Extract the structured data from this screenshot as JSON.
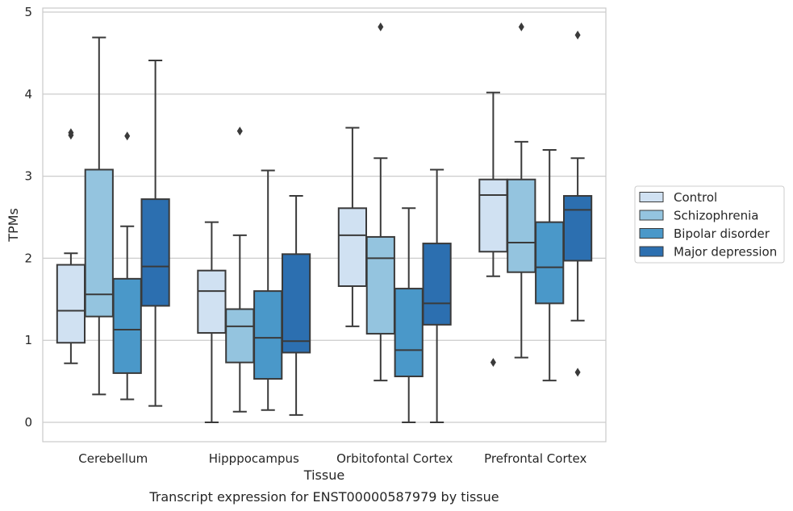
{
  "caption": "Transcript expression for ENST00000587979 by tissue",
  "chart_data": {
    "type": "box",
    "xlabel": "Tissue",
    "ylabel": "TPMs",
    "ylim": [
      -0.23,
      5.07
    ],
    "yticks": [
      0,
      1,
      2,
      3,
      4,
      5
    ],
    "grid": "horizontal",
    "legend_position": "right",
    "categories": [
      "Cerebellum",
      "Hipppocampus",
      "Orbitofontal Cortex",
      "Prefrontal Cortex"
    ],
    "series": [
      {
        "name": "Control",
        "color": "#d0e1f2",
        "boxes": [
          {
            "whislo": 0.72,
            "q1": 0.97,
            "med": 1.36,
            "q3": 1.92,
            "whishi": 2.06,
            "fliers": [
              3.5,
              3.53
            ]
          },
          {
            "whislo": 0.0,
            "q1": 1.09,
            "med": 1.6,
            "q3": 1.85,
            "whishi": 2.44,
            "fliers": []
          },
          {
            "whislo": 1.17,
            "q1": 1.66,
            "med": 2.28,
            "q3": 2.61,
            "whishi": 3.59,
            "fliers": []
          },
          {
            "whislo": 1.78,
            "q1": 2.08,
            "med": 2.77,
            "q3": 2.96,
            "whishi": 4.02,
            "fliers": [
              0.73
            ]
          }
        ]
      },
      {
        "name": "Schizophrenia",
        "color": "#94c4df",
        "boxes": [
          {
            "whislo": 0.34,
            "q1": 1.29,
            "med": 1.56,
            "q3": 3.08,
            "whishi": 4.69,
            "fliers": []
          },
          {
            "whislo": 0.13,
            "q1": 0.73,
            "med": 1.17,
            "q3": 1.38,
            "whishi": 2.28,
            "fliers": [
              3.55
            ]
          },
          {
            "whislo": 0.51,
            "q1": 1.08,
            "med": 2.0,
            "q3": 2.26,
            "whishi": 3.22,
            "fliers": [
              4.82
            ]
          },
          {
            "whislo": 0.79,
            "q1": 1.83,
            "med": 2.19,
            "q3": 2.96,
            "whishi": 3.42,
            "fliers": [
              4.82
            ]
          }
        ]
      },
      {
        "name": "Bipolar disorder",
        "color": "#4a98c9",
        "boxes": [
          {
            "whislo": 0.28,
            "q1": 0.6,
            "med": 1.13,
            "q3": 1.75,
            "whishi": 2.39,
            "fliers": [
              3.49
            ]
          },
          {
            "whislo": 0.15,
            "q1": 0.53,
            "med": 1.03,
            "q3": 1.6,
            "whishi": 3.07,
            "fliers": []
          },
          {
            "whislo": 0.0,
            "q1": 0.56,
            "med": 0.88,
            "q3": 1.63,
            "whishi": 2.61,
            "fliers": []
          },
          {
            "whislo": 0.51,
            "q1": 1.45,
            "med": 1.89,
            "q3": 2.44,
            "whishi": 3.32,
            "fliers": []
          }
        ]
      },
      {
        "name": "Major depression",
        "color": "#2c6fb0",
        "boxes": [
          {
            "whislo": 0.2,
            "q1": 1.42,
            "med": 1.9,
            "q3": 2.72,
            "whishi": 4.41,
            "fliers": []
          },
          {
            "whislo": 0.09,
            "q1": 0.85,
            "med": 0.99,
            "q3": 2.05,
            "whishi": 2.76,
            "fliers": []
          },
          {
            "whislo": 0.0,
            "q1": 1.19,
            "med": 1.45,
            "q3": 2.18,
            "whishi": 3.08,
            "fliers": []
          },
          {
            "whislo": 1.24,
            "q1": 1.97,
            "med": 2.59,
            "q3": 2.76,
            "whishi": 3.22,
            "fliers": [
              0.61,
              4.72
            ]
          }
        ]
      }
    ]
  }
}
